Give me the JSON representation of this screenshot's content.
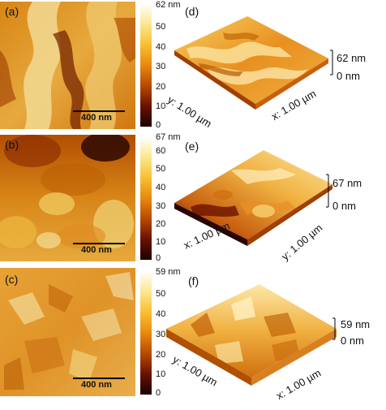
{
  "panels": [
    {
      "label": "(a)",
      "scale_bar": "400 nm",
      "colorbar_ticks": [
        "62 nm",
        "50",
        "40",
        "30",
        "20",
        "10",
        "0"
      ]
    },
    {
      "label": "(b)",
      "scale_bar": "400 nm",
      "colorbar_ticks": [
        "67 nm",
        "60",
        "50",
        "40",
        "30",
        "20",
        "10",
        "0"
      ]
    },
    {
      "label": "(c)",
      "scale_bar": "400 nm",
      "colorbar_ticks": [
        "59 nm",
        "50",
        "40",
        "30",
        "20",
        "10",
        "0"
      ]
    }
  ],
  "surfaces": [
    {
      "label": "(d)",
      "x_axis": "x: 1.00 µm",
      "y_axis": "y: 1.00 µm",
      "z_max": "62 nm",
      "z_min": "0 nm"
    },
    {
      "label": "(e)",
      "x_axis": "x: 1.00 µm",
      "y_axis": "y: 1.00 µm",
      "z_max": "67 nm",
      "z_min": "0 nm"
    },
    {
      "label": "(f)",
      "x_axis": "x: 1.00 µm",
      "y_axis": "y: 1.00 µm",
      "z_max": "59 nm",
      "z_min": "0 nm"
    }
  ],
  "colormap": [
    "#1a0000",
    "#6a1200",
    "#b84a00",
    "#e88a10",
    "#f8c030",
    "#fbe890",
    "#ffffff"
  ]
}
